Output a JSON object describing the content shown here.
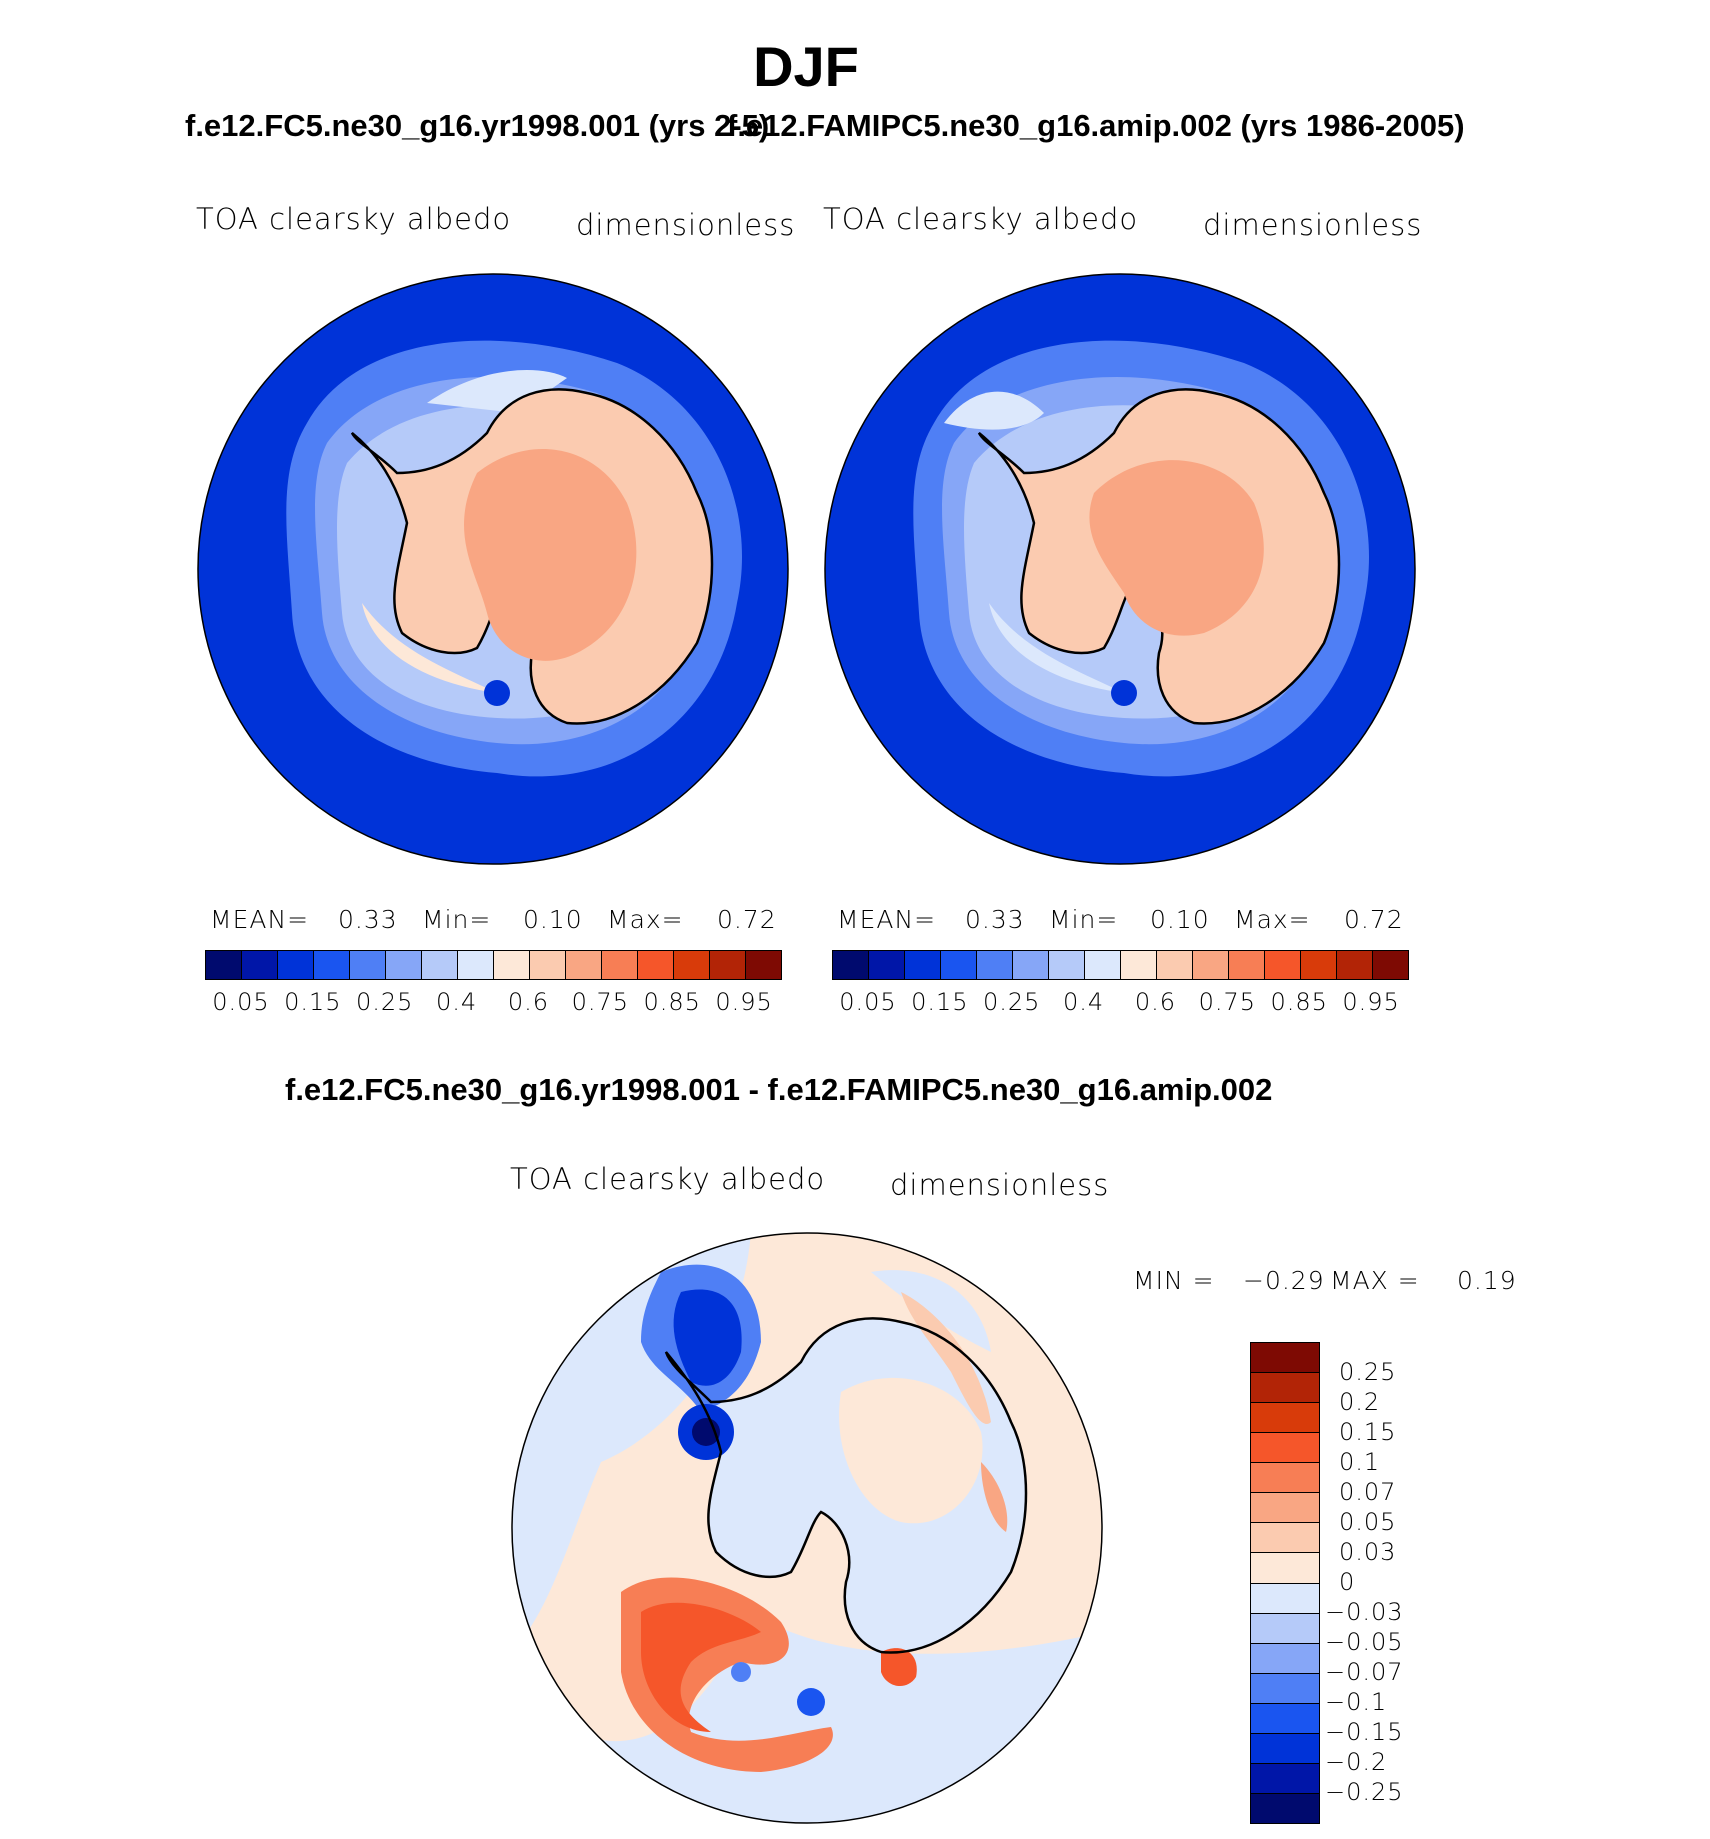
{
  "title": "DJF",
  "panels": [
    {
      "title": "f.e12.FC5.ne30_g16.yr1998.001 (yrs 2-5)",
      "variable": "TOA clearsky albedo",
      "units": "dimensionless",
      "stats": {
        "mean_label": "MEAN=",
        "mean": "0.33",
        "min_label": "Min=",
        "min": "0.10",
        "max_label": "Max=",
        "max": "0.72"
      }
    },
    {
      "title": "f.e12.FAMIPC5.ne30_g16.amip.002 (yrs 1986-2005)",
      "variable": "TOA clearsky albedo",
      "units": "dimensionless",
      "stats": {
        "mean_label": "MEAN=",
        "mean": "0.33",
        "min_label": "Min=",
        "min": "0.10",
        "max_label": "Max=",
        "max": "0.72"
      }
    }
  ],
  "colorbar": {
    "colors": [
      "#000a6e",
      "#0016a8",
      "#0033d8",
      "#1a55f0",
      "#4f7ff5",
      "#86a6f7",
      "#b5caf9",
      "#dce8fc",
      "#fde8d8",
      "#fbcbb0",
      "#f9a683",
      "#f77e55",
      "#f5562a",
      "#d83b0a",
      "#b22406",
      "#7e0a03"
    ],
    "ticks": [
      "0.05",
      "0.15",
      "0.25",
      "0.4",
      "0.6",
      "0.75",
      "0.85",
      "0.95"
    ]
  },
  "diff": {
    "title": "f.e12.FC5.ne30_g16.yr1998.001 - f.e12.FAMIPC5.ne30_g16.amip.002",
    "variable": "TOA clearsky albedo",
    "units": "dimensionless",
    "min_label": "MIN =",
    "min": "−0.29",
    "max_label": "MAX =",
    "max": "0.19",
    "colorbar": {
      "colors": [
        "#7e0a03",
        "#b22406",
        "#d83b0a",
        "#f5562a",
        "#f77e55",
        "#f9a683",
        "#fbcbb0",
        "#fde8d8",
        "#dce8fc",
        "#b5caf9",
        "#86a6f7",
        "#4f7ff5",
        "#1a55f0",
        "#0033d8",
        "#0016a8",
        "#000a6e"
      ],
      "ticks": [
        "0.25",
        "0.2",
        "0.15",
        "0.1",
        "0.07",
        "0.05",
        "0.03",
        "0",
        "−0.03",
        "−0.05",
        "−0.07",
        "−0.1",
        "−0.15",
        "−0.2",
        "−0.25"
      ]
    }
  }
}
